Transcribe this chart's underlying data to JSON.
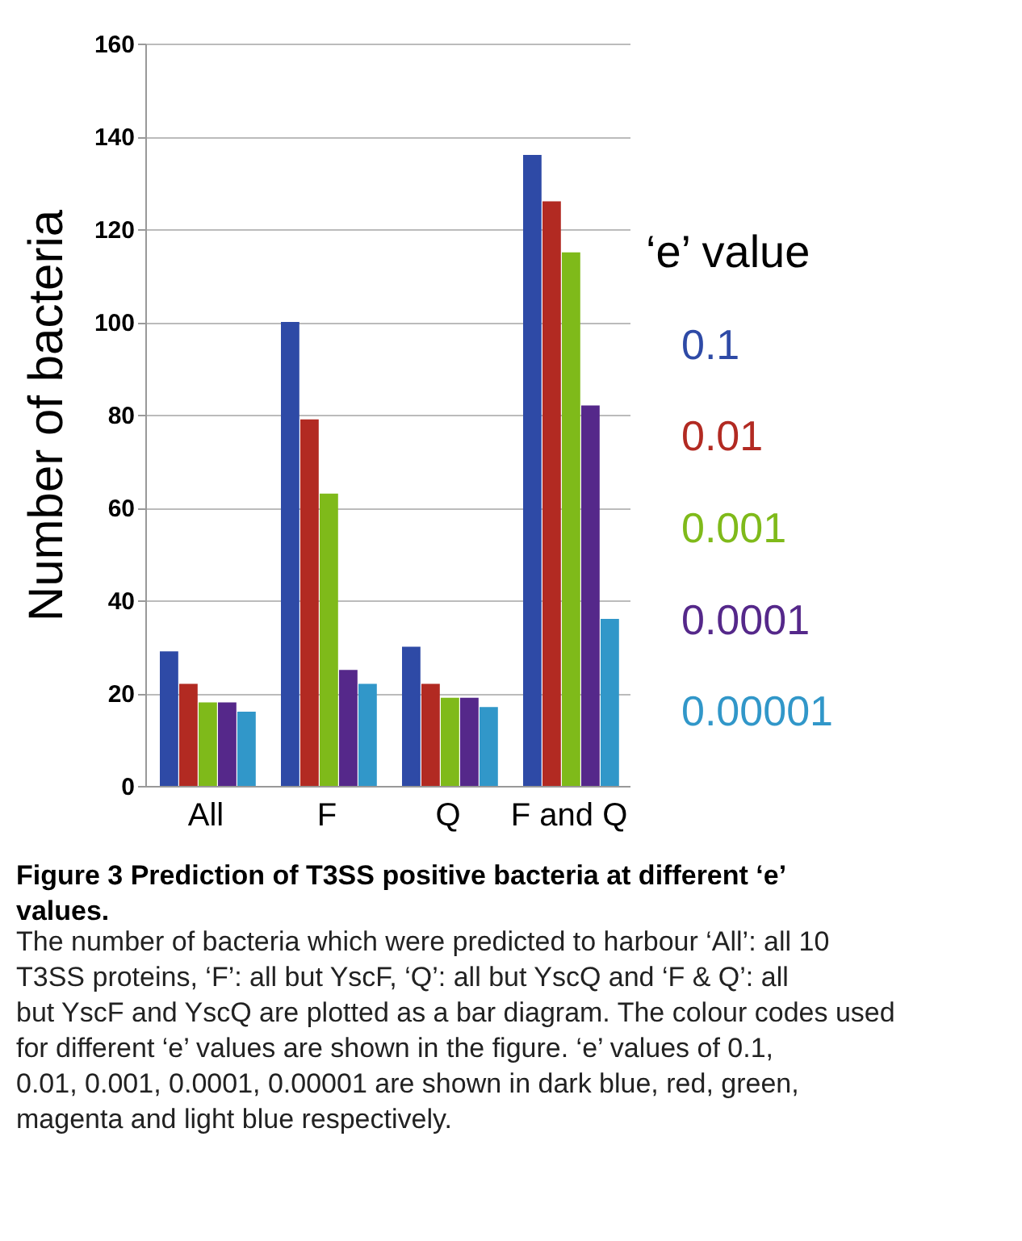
{
  "chart_data": {
    "type": "bar",
    "title": "Figure 3 Prediction of T3SS positive bacteria at different ‘e’ values.",
    "ylabel": "Number of bacteria",
    "legend_title": "‘e’ value",
    "categories": [
      "All",
      "F",
      "Q",
      "F and Q"
    ],
    "series": [
      {
        "name": "0.1",
        "color": "#2e4aa6",
        "values": [
          29,
          100,
          30,
          136
        ]
      },
      {
        "name": "0.01",
        "color": "#b22a22",
        "values": [
          22,
          79,
          22,
          126
        ]
      },
      {
        "name": "0.001",
        "color": "#7fba1a",
        "values": [
          18,
          63,
          19,
          115
        ]
      },
      {
        "name": "0.0001",
        "color": "#55288a",
        "values": [
          18,
          25,
          19,
          82
        ]
      },
      {
        "name": "0.00001",
        "color": "#3197c9",
        "values": [
          16,
          22,
          17,
          36
        ]
      }
    ],
    "ylim": [
      0,
      160
    ],
    "yticks": [
      0,
      20,
      40,
      60,
      80,
      100,
      120,
      140,
      160
    ],
    "grid": "y",
    "legend": "right",
    "annotations": [
      "The number of bacteria which were predicted to harbour ‘All’: all 10 T3SS proteins, ‘F’: all but YscF, ‘Q’: all but YscQ and ‘F & Q’: all but YscF and YscQ are plotted as a bar diagram. The colour codes used for different ‘e’ values are shown in the figure. ‘e’ values of 0.1, 0.01, 0.001, 0.0001, 0.00001 are shown in dark blue, red, green, magenta and light blue respectively."
    ]
  }
}
